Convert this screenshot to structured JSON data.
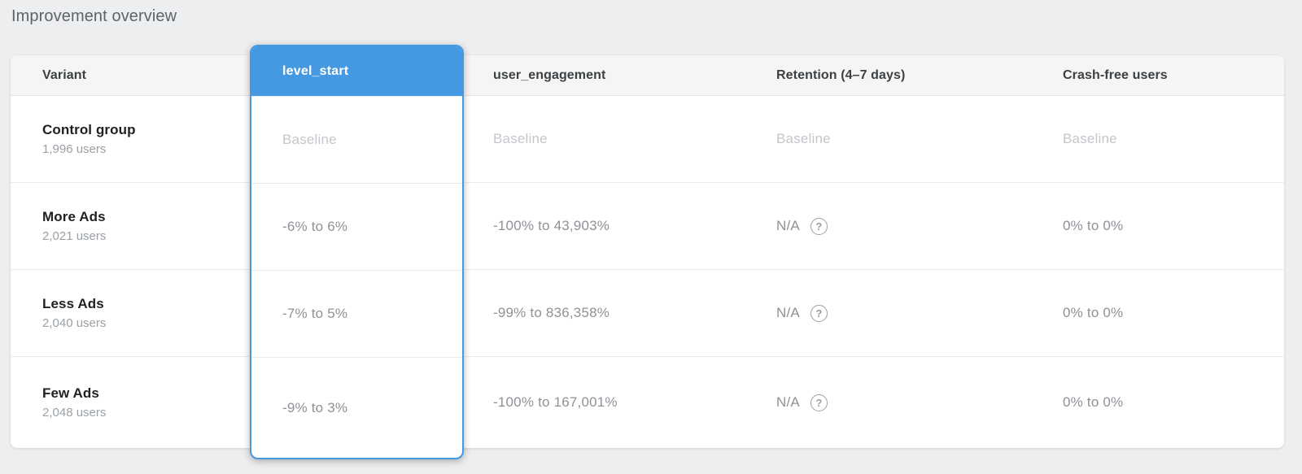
{
  "page": {
    "title": "Improvement overview"
  },
  "colors": {
    "accent_blue": "#4499E0",
    "page_background": "#ECEEF0",
    "header_background": "#F5F5F5",
    "value_text": "#8E9297",
    "baseline_text": "#C3C6CA"
  },
  "table": {
    "columns": [
      {
        "label": "Variant",
        "selected": false
      },
      {
        "label": "level_start",
        "selected": true
      },
      {
        "label": "user_engagement",
        "selected": false
      },
      {
        "label": "Retention (4–7 days)",
        "selected": false
      },
      {
        "label": "Crash-free users",
        "selected": false
      }
    ],
    "help_icon": "?",
    "rows": [
      {
        "variant": "Control group",
        "users": "1,996 users",
        "level_start": "Baseline",
        "user_engagement": "Baseline",
        "retention": "Baseline",
        "crash_free": "Baseline",
        "is_baseline": true
      },
      {
        "variant": "More Ads",
        "users": "2,021 users",
        "level_start": "-6% to 6%",
        "user_engagement": "-100% to 43,903%",
        "retention": "N/A",
        "crash_free": "0% to 0%",
        "is_baseline": false
      },
      {
        "variant": "Less Ads",
        "users": "2,040 users",
        "level_start": "-7% to 5%",
        "user_engagement": "-99% to 836,358%",
        "retention": "N/A",
        "crash_free": "0% to 0%",
        "is_baseline": false
      },
      {
        "variant": "Few Ads",
        "users": "2,048 users",
        "level_start": "-9% to 3%",
        "user_engagement": "-100% to 167,001%",
        "retention": "N/A",
        "crash_free": "0% to 0%",
        "is_baseline": false
      }
    ]
  }
}
